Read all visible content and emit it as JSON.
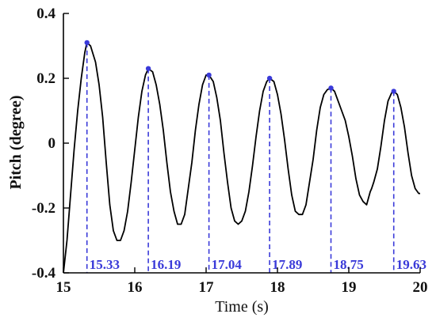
{
  "chart_data": {
    "type": "line",
    "title": "",
    "xlabel": "Time (s)",
    "ylabel": "Pitch (degree)",
    "xlim": [
      15,
      20
    ],
    "ylim": [
      -0.4,
      0.4
    ],
    "xticks": [
      "15",
      "16",
      "17",
      "18",
      "19",
      "20"
    ],
    "yticks": [
      "-0.4",
      "-0.2",
      "0",
      "0.2",
      "0.4"
    ],
    "grid": false,
    "line_color": "#000000",
    "peak_color": "#3a3ad9",
    "series": [
      {
        "values": [
          [
            15.0,
            -0.4
          ],
          [
            15.05,
            -0.3
          ],
          [
            15.1,
            -0.16
          ],
          [
            15.15,
            -0.02
          ],
          [
            15.2,
            0.1
          ],
          [
            15.25,
            0.2
          ],
          [
            15.3,
            0.28
          ],
          [
            15.33,
            0.31
          ],
          [
            15.38,
            0.3
          ],
          [
            15.45,
            0.25
          ],
          [
            15.5,
            0.18
          ],
          [
            15.55,
            0.08
          ],
          [
            15.6,
            -0.06
          ],
          [
            15.65,
            -0.19
          ],
          [
            15.7,
            -0.27
          ],
          [
            15.75,
            -0.3
          ],
          [
            15.8,
            -0.3
          ],
          [
            15.85,
            -0.27
          ],
          [
            15.9,
            -0.21
          ],
          [
            15.95,
            -0.12
          ],
          [
            16.0,
            -0.02
          ],
          [
            16.05,
            0.08
          ],
          [
            16.1,
            0.16
          ],
          [
            16.15,
            0.21
          ],
          [
            16.19,
            0.23
          ],
          [
            16.25,
            0.22
          ],
          [
            16.3,
            0.18
          ],
          [
            16.35,
            0.12
          ],
          [
            16.4,
            0.04
          ],
          [
            16.45,
            -0.06
          ],
          [
            16.5,
            -0.15
          ],
          [
            16.55,
            -0.21
          ],
          [
            16.6,
            -0.25
          ],
          [
            16.65,
            -0.25
          ],
          [
            16.7,
            -0.22
          ],
          [
            16.75,
            -0.14
          ],
          [
            16.8,
            -0.06
          ],
          [
            16.85,
            0.04
          ],
          [
            16.9,
            0.12
          ],
          [
            16.95,
            0.18
          ],
          [
            17.0,
            0.21
          ],
          [
            17.04,
            0.21
          ],
          [
            17.1,
            0.19
          ],
          [
            17.15,
            0.14
          ],
          [
            17.2,
            0.07
          ],
          [
            17.25,
            -0.03
          ],
          [
            17.3,
            -0.12
          ],
          [
            17.35,
            -0.2
          ],
          [
            17.4,
            -0.24
          ],
          [
            17.45,
            -0.25
          ],
          [
            17.5,
            -0.24
          ],
          [
            17.55,
            -0.21
          ],
          [
            17.6,
            -0.15
          ],
          [
            17.65,
            -0.07
          ],
          [
            17.7,
            0.02
          ],
          [
            17.75,
            0.1
          ],
          [
            17.8,
            0.16
          ],
          [
            17.85,
            0.19
          ],
          [
            17.89,
            0.2
          ],
          [
            17.95,
            0.19
          ],
          [
            18.0,
            0.15
          ],
          [
            18.05,
            0.09
          ],
          [
            18.1,
            0.01
          ],
          [
            18.15,
            -0.08
          ],
          [
            18.2,
            -0.16
          ],
          [
            18.25,
            -0.21
          ],
          [
            18.3,
            -0.22
          ],
          [
            18.35,
            -0.22
          ],
          [
            18.4,
            -0.19
          ],
          [
            18.45,
            -0.12
          ],
          [
            18.5,
            -0.05
          ],
          [
            18.55,
            0.04
          ],
          [
            18.6,
            0.11
          ],
          [
            18.65,
            0.15
          ],
          [
            18.7,
            0.165
          ],
          [
            18.75,
            0.17
          ],
          [
            18.8,
            0.16
          ],
          [
            18.85,
            0.13
          ],
          [
            18.9,
            0.1
          ],
          [
            18.95,
            0.07
          ],
          [
            19.0,
            0.02
          ],
          [
            19.05,
            -0.04
          ],
          [
            19.1,
            -0.11
          ],
          [
            19.15,
            -0.16
          ],
          [
            19.2,
            -0.18
          ],
          [
            19.25,
            -0.19
          ],
          [
            19.3,
            -0.15
          ],
          [
            19.32,
            -0.14
          ],
          [
            19.35,
            -0.12
          ],
          [
            19.4,
            -0.08
          ],
          [
            19.45,
            -0.01
          ],
          [
            19.5,
            0.07
          ],
          [
            19.55,
            0.13
          ],
          [
            19.6,
            0.155
          ],
          [
            19.63,
            0.16
          ],
          [
            19.68,
            0.15
          ],
          [
            19.73,
            0.11
          ],
          [
            19.78,
            0.05
          ],
          [
            19.83,
            -0.03
          ],
          [
            19.88,
            -0.1
          ],
          [
            19.93,
            -0.14
          ],
          [
            19.98,
            -0.155
          ],
          [
            20.0,
            -0.155
          ]
        ]
      }
    ],
    "peaks": [
      {
        "x": 15.33,
        "y": 0.31,
        "label": "15.33"
      },
      {
        "x": 16.19,
        "y": 0.23,
        "label": "16.19"
      },
      {
        "x": 17.04,
        "y": 0.21,
        "label": "17.04"
      },
      {
        "x": 17.89,
        "y": 0.2,
        "label": "17.89"
      },
      {
        "x": 18.75,
        "y": 0.17,
        "label": "18.75"
      },
      {
        "x": 19.63,
        "y": 0.16,
        "label": "19.63"
      }
    ]
  }
}
